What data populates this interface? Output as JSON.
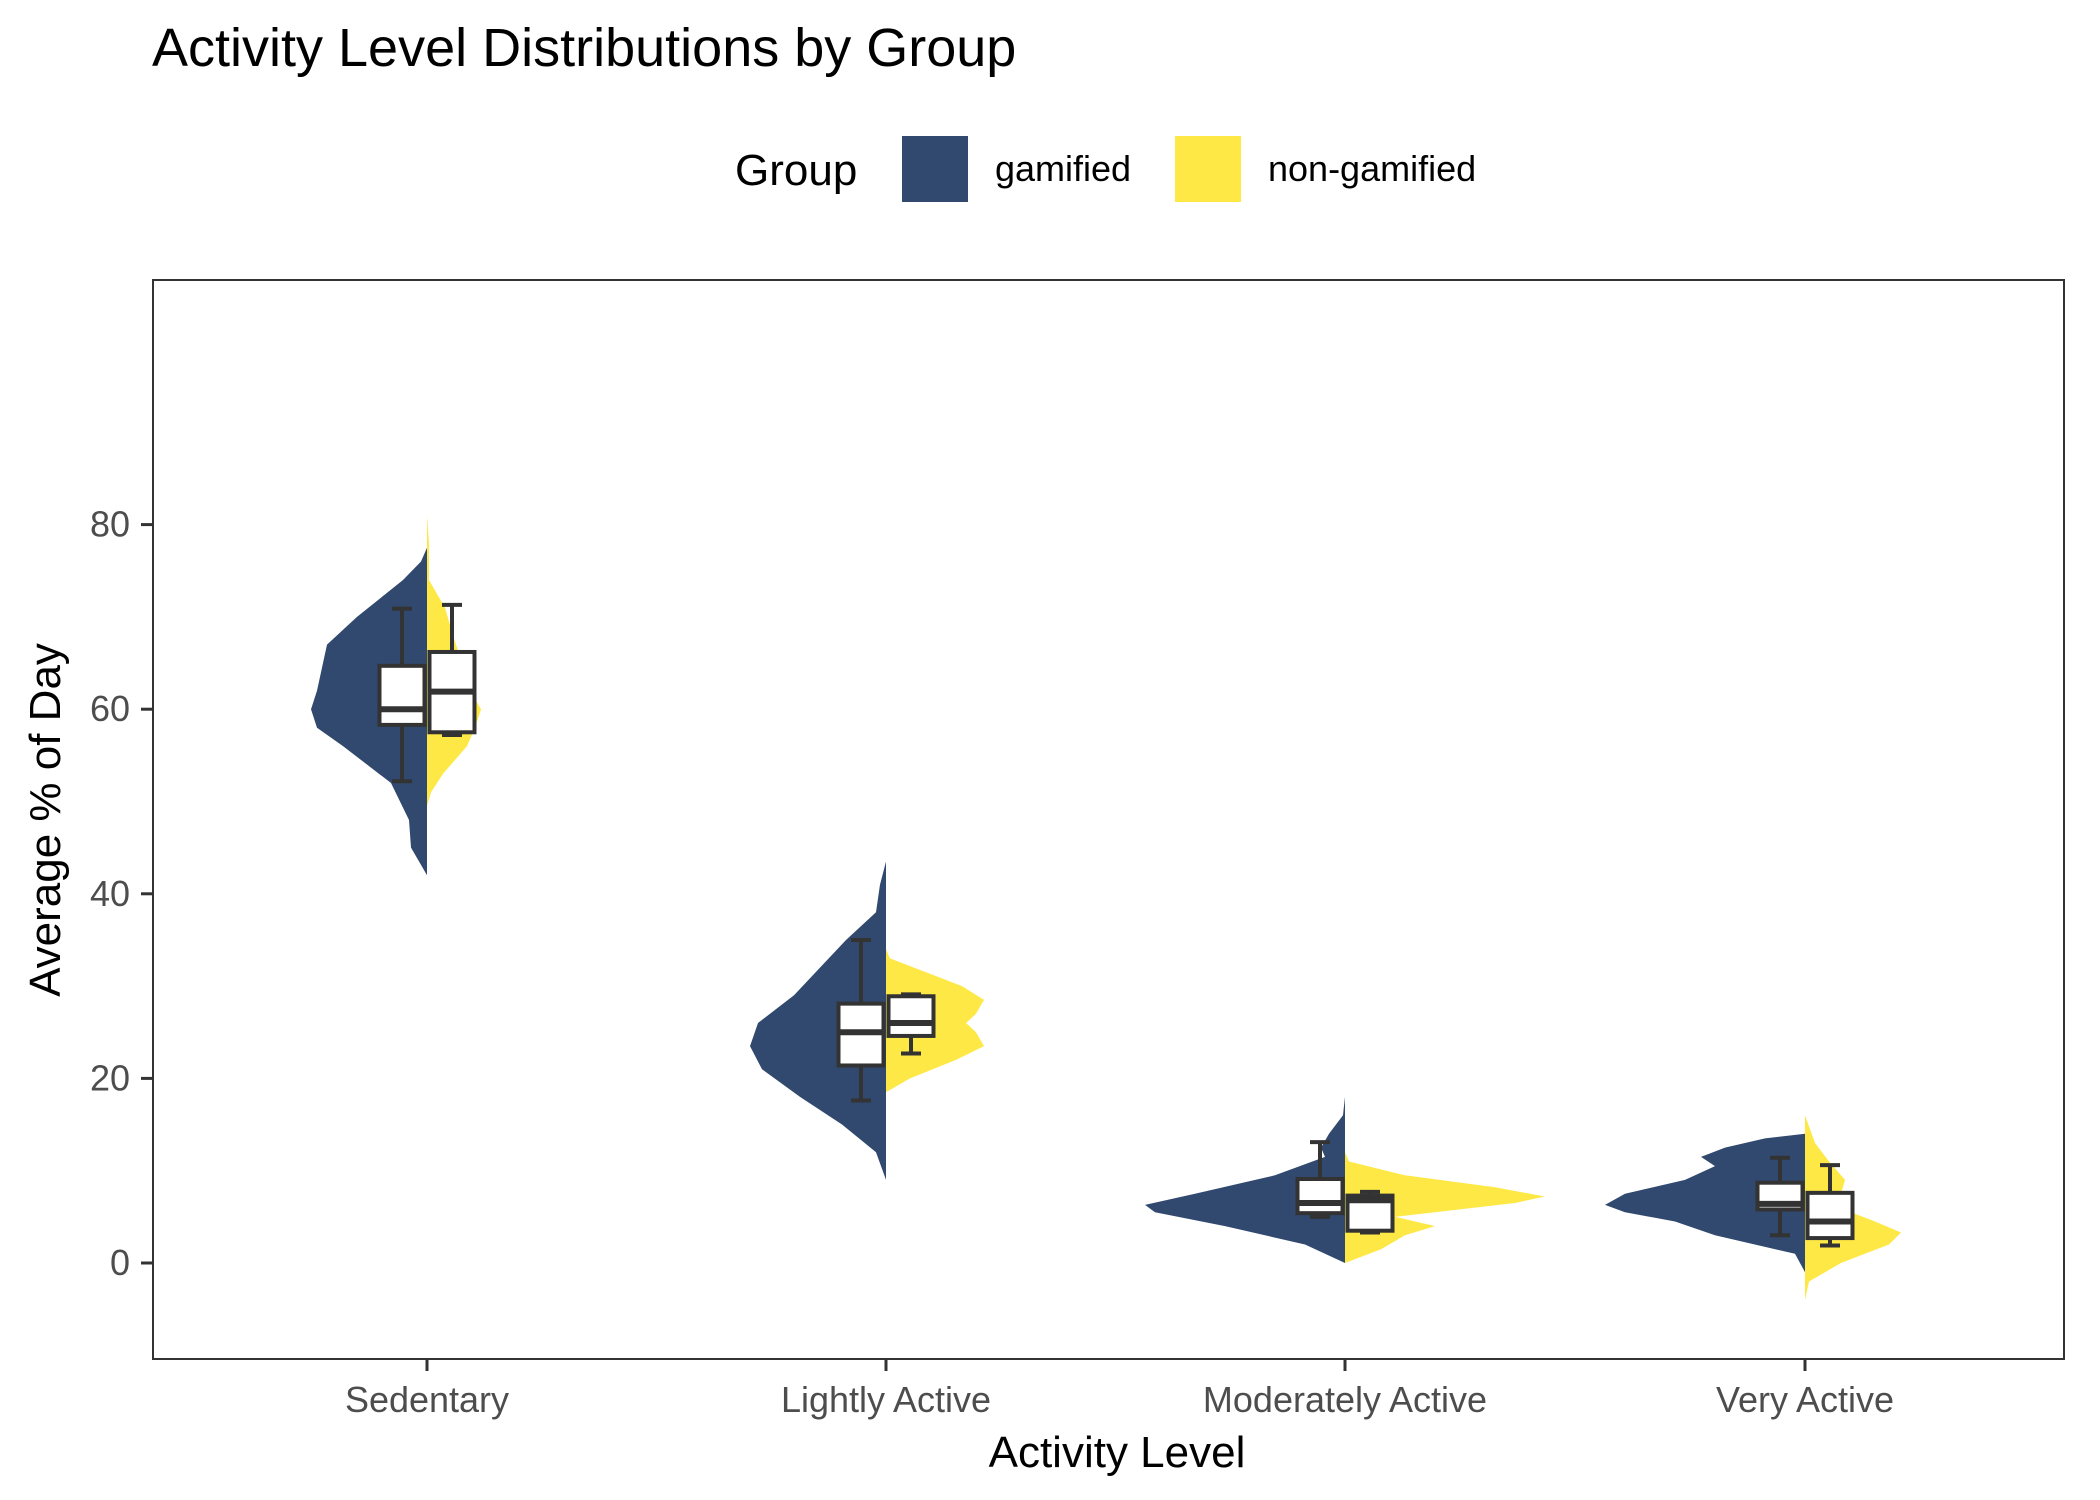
{
  "chart_data": {
    "type": "split-violin with boxplots",
    "title": "Activity Level Distributions by Group",
    "xlabel": "Activity Level",
    "ylabel": "Average % of Day",
    "ylim": [
      -8,
      86
    ],
    "yticks": [
      0,
      20,
      40,
      60,
      80
    ],
    "categories": [
      "Sedentary",
      "Lightly Active",
      "Moderately Active",
      "Very Active"
    ],
    "legend": {
      "title": "Group",
      "position": "top"
    },
    "grid": false,
    "series": [
      {
        "name": "gamified",
        "color": "#31496e",
        "side": "left",
        "violins": [
          {
            "profile": [
              [
                37.5,
                0
              ],
              [
                42,
                0.0
              ],
              [
                45,
                0.08
              ],
              [
                48,
                0.09
              ],
              [
                52,
                0.18
              ],
              [
                56,
                0.42
              ],
              [
                58,
                0.55
              ],
              [
                60,
                0.58
              ],
              [
                62,
                0.55
              ],
              [
                65,
                0.52
              ],
              [
                67,
                0.5
              ],
              [
                70,
                0.35
              ],
              [
                74,
                0.12
              ],
              [
                76,
                0.03
              ],
              [
                77.5,
                0
              ]
            ]
          },
          {
            "profile": [
              [
                9,
                0
              ],
              [
                12,
                0.05
              ],
              [
                15,
                0.22
              ],
              [
                18,
                0.43
              ],
              [
                21,
                0.62
              ],
              [
                23.5,
                0.68
              ],
              [
                26,
                0.64
              ],
              [
                29,
                0.46
              ],
              [
                32,
                0.33
              ],
              [
                35,
                0.2
              ],
              [
                38,
                0.05
              ],
              [
                41,
                0.03
              ],
              [
                43.5,
                0
              ]
            ]
          },
          {
            "profile": [
              [
                0,
                0
              ],
              [
                2,
                0.2
              ],
              [
                4,
                0.6
              ],
              [
                5.5,
                0.95
              ],
              [
                6.3,
                1.0
              ],
              [
                7.5,
                0.75
              ],
              [
                9.5,
                0.35
              ],
              [
                11.5,
                0.1
              ],
              [
                12.5,
                0.12
              ],
              [
                14,
                0.08
              ],
              [
                16,
                0.01
              ],
              [
                18,
                0
              ]
            ]
          },
          {
            "profile": [
              [
                -1,
                0
              ],
              [
                1,
                0.05
              ],
              [
                3,
                0.45
              ],
              [
                4.5,
                0.65
              ],
              [
                5.5,
                0.9
              ],
              [
                6.3,
                1.0
              ],
              [
                7.5,
                0.9
              ],
              [
                9,
                0.6
              ],
              [
                10.5,
                0.45
              ],
              [
                11.5,
                0.52
              ],
              [
                12.5,
                0.4
              ],
              [
                13.5,
                0.2
              ],
              [
                14,
                0
              ]
            ]
          }
        ],
        "boxplots": [
          {
            "min": 52.2,
            "q1": 58.3,
            "median": 60.0,
            "q3": 64.7,
            "max": 70.9
          },
          {
            "min": 17.6,
            "q1": 21.4,
            "median": 25.0,
            "q3": 28.1,
            "max": 35.0
          },
          {
            "min": 5.0,
            "q1": 5.4,
            "median": 6.5,
            "q3": 9.1,
            "max": 13.1
          },
          {
            "min": 3.0,
            "q1": 5.8,
            "median": 6.4,
            "q3": 8.7,
            "max": 11.4
          }
        ]
      },
      {
        "name": "non-gamified",
        "color": "#fde845",
        "side": "right",
        "violins": [
          {
            "profile": [
              [
                49.5,
                0
              ],
              [
                51,
                0.02
              ],
              [
                53,
                0.08
              ],
              [
                56,
                0.2
              ],
              [
                58,
                0.24
              ],
              [
                60,
                0.27
              ],
              [
                63,
                0.19
              ],
              [
                66,
                0.16
              ],
              [
                68,
                0.13
              ],
              [
                71,
                0.09
              ],
              [
                74,
                0.01
              ],
              [
                78,
                0.01
              ],
              [
                81,
                0
              ]
            ]
          },
          {
            "profile": [
              [
                18.5,
                0
              ],
              [
                20,
                0.12
              ],
              [
                22,
                0.35
              ],
              [
                23.5,
                0.49
              ],
              [
                25,
                0.45
              ],
              [
                26,
                0.4
              ],
              [
                27,
                0.45
              ],
              [
                28.5,
                0.49
              ],
              [
                30,
                0.38
              ],
              [
                31.5,
                0.2
              ],
              [
                33,
                0.02
              ],
              [
                34,
                0
              ]
            ]
          },
          {
            "profile": [
              [
                0,
                0
              ],
              [
                1.5,
                0.18
              ],
              [
                3,
                0.3
              ],
              [
                4,
                0.45
              ],
              [
                5,
                0.25
              ],
              [
                6.5,
                0.85
              ],
              [
                7.2,
                1.0
              ],
              [
                8.2,
                0.75
              ],
              [
                9.5,
                0.3
              ],
              [
                11,
                0.02
              ],
              [
                12,
                0
              ]
            ]
          },
          {
            "profile": [
              [
                -4,
                0
              ],
              [
                -2,
                0.02
              ],
              [
                0,
                0.18
              ],
              [
                2,
                0.42
              ],
              [
                3.3,
                0.48
              ],
              [
                4.5,
                0.35
              ],
              [
                6,
                0.17
              ],
              [
                7.5,
                0.18
              ],
              [
                9,
                0.2
              ],
              [
                11,
                0.12
              ],
              [
                13,
                0.05
              ],
              [
                16,
                0
              ]
            ]
          }
        ],
        "boxplots": [
          {
            "min": 57.2,
            "q1": 57.5,
            "median": 61.9,
            "q3": 66.2,
            "max": 71.3
          },
          {
            "min": 22.7,
            "q1": 24.6,
            "median": 26.0,
            "q3": 28.9,
            "max": 29.1
          },
          {
            "min": 3.3,
            "q1": 3.5,
            "median": 6.8,
            "q3": 7.3,
            "max": 7.7
          },
          {
            "min": 1.9,
            "q1": 2.7,
            "median": 4.5,
            "q3": 7.6,
            "max": 10.6
          }
        ]
      }
    ]
  }
}
